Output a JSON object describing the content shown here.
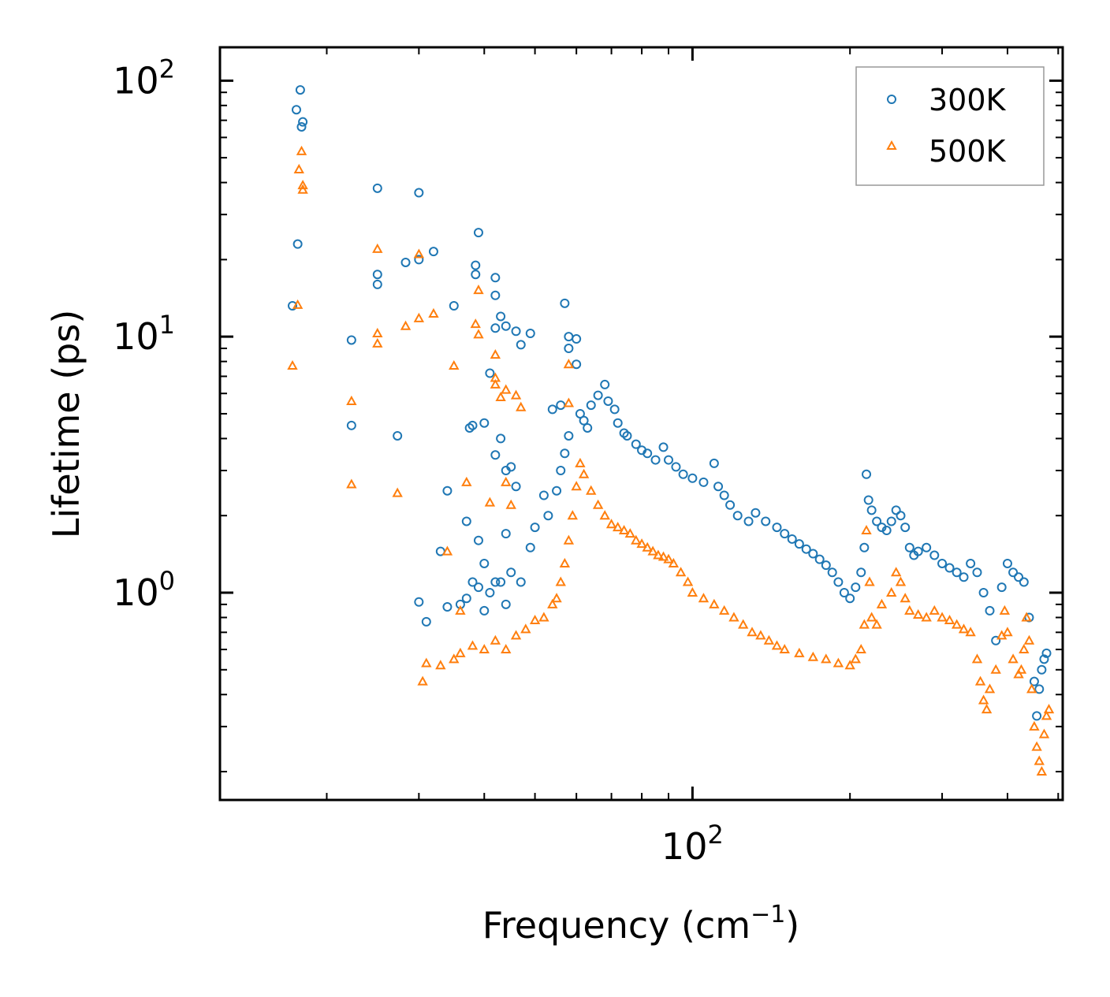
{
  "chart_data": {
    "type": "scatter",
    "xscale": "log",
    "yscale": "log",
    "xlabel": "Frequency (cm",
    "xlabel_sup": "−1",
    "xlabel_end": ")",
    "ylabel": "Lifetime (ps)",
    "xlim": [
      12.5,
      510
    ],
    "ylim": [
      0.155,
      135
    ],
    "x_ticks": [
      {
        "value": 100,
        "base": "10",
        "exp": "2"
      }
    ],
    "y_ticks": [
      {
        "value": 1,
        "base": "10",
        "exp": "0"
      },
      {
        "value": 10,
        "base": "10",
        "exp": "1"
      },
      {
        "value": 100,
        "base": "10",
        "exp": "2"
      }
    ],
    "legend": {
      "position": "top-right",
      "entries": [
        "300K",
        "500K"
      ]
    },
    "series": [
      {
        "name": "300K",
        "marker": "circle",
        "color": "#1f77b4",
        "points": [
          [
            17.2,
            13.2
          ],
          [
            17.5,
            77
          ],
          [
            17.8,
            92
          ],
          [
            17.9,
            66
          ],
          [
            18.0,
            69
          ],
          [
            17.6,
            23
          ],
          [
            22.3,
            9.7
          ],
          [
            22.3,
            4.5
          ],
          [
            25.0,
            38
          ],
          [
            25.0,
            17.5
          ],
          [
            25.0,
            16
          ],
          [
            27.3,
            4.1
          ],
          [
            28.3,
            19.5
          ],
          [
            30.0,
            20
          ],
          [
            30.0,
            36.5
          ],
          [
            32.0,
            21.5
          ],
          [
            35.0,
            13.2
          ],
          [
            38.5,
            19
          ],
          [
            38.5,
            17.5
          ],
          [
            39.0,
            25.5
          ],
          [
            42,
            17
          ],
          [
            42,
            14.5
          ],
          [
            43,
            12
          ],
          [
            44,
            11
          ],
          [
            42,
            10.8
          ],
          [
            46,
            10.5
          ],
          [
            47,
            9.3
          ],
          [
            49,
            10.3
          ],
          [
            41,
            7.2
          ],
          [
            40,
            4.6
          ],
          [
            38,
            4.5
          ],
          [
            37.5,
            4.4
          ],
          [
            43,
            4.0
          ],
          [
            45,
            3.1
          ],
          [
            44,
            3.0
          ],
          [
            42,
            3.45
          ],
          [
            46,
            2.6
          ],
          [
            34,
            2.5
          ],
          [
            37,
            1.9
          ],
          [
            33,
            1.45
          ],
          [
            39,
            1.6
          ],
          [
            40,
            1.3
          ],
          [
            44,
            1.7
          ],
          [
            45,
            1.2
          ],
          [
            42,
            1.1
          ],
          [
            30,
            0.92
          ],
          [
            31,
            0.77
          ],
          [
            34,
            0.88
          ],
          [
            36,
            0.9
          ],
          [
            37,
            0.95
          ],
          [
            39,
            1.05
          ],
          [
            41,
            1.0
          ],
          [
            43,
            1.1
          ],
          [
            38,
            1.1
          ],
          [
            40,
            0.85
          ],
          [
            44,
            0.9
          ],
          [
            47,
            1.1
          ],
          [
            49,
            1.5
          ],
          [
            50,
            1.8
          ],
          [
            52,
            2.4
          ],
          [
            53,
            2.0
          ],
          [
            55,
            2.5
          ],
          [
            56,
            3.0
          ],
          [
            57,
            3.5
          ],
          [
            58,
            4.1
          ],
          [
            54,
            5.2
          ],
          [
            56,
            5.4
          ],
          [
            57,
            13.5
          ],
          [
            58,
            10
          ],
          [
            58,
            9.0
          ],
          [
            60,
            9.8
          ],
          [
            60,
            7.8
          ],
          [
            61,
            5.0
          ],
          [
            62,
            4.7
          ],
          [
            63,
            4.4
          ],
          [
            64,
            5.4
          ],
          [
            66,
            5.9
          ],
          [
            68,
            6.5
          ],
          [
            69,
            5.6
          ],
          [
            71,
            5.2
          ],
          [
            72,
            4.6
          ],
          [
            74,
            4.2
          ],
          [
            75,
            4.1
          ],
          [
            78,
            3.8
          ],
          [
            80,
            3.6
          ],
          [
            82,
            3.5
          ],
          [
            85,
            3.3
          ],
          [
            88,
            3.7
          ],
          [
            90,
            3.3
          ],
          [
            93,
            3.1
          ],
          [
            96,
            2.9
          ],
          [
            100,
            2.8
          ],
          [
            105,
            2.7
          ],
          [
            110,
            3.2
          ],
          [
            112,
            2.6
          ],
          [
            115,
            2.4
          ],
          [
            118,
            2.2
          ],
          [
            122,
            2.0
          ],
          [
            128,
            1.9
          ],
          [
            132,
            2.05
          ],
          [
            138,
            1.9
          ],
          [
            145,
            1.8
          ],
          [
            150,
            1.7
          ],
          [
            155,
            1.62
          ],
          [
            160,
            1.55
          ],
          [
            165,
            1.48
          ],
          [
            170,
            1.42
          ],
          [
            175,
            1.35
          ],
          [
            180,
            1.28
          ],
          [
            185,
            1.2
          ],
          [
            190,
            1.1
          ],
          [
            195,
            1.0
          ],
          [
            200,
            0.95
          ],
          [
            205,
            1.05
          ],
          [
            210,
            1.2
          ],
          [
            213,
            1.5
          ],
          [
            215,
            2.9
          ],
          [
            217,
            2.3
          ],
          [
            220,
            2.1
          ],
          [
            225,
            1.9
          ],
          [
            230,
            1.8
          ],
          [
            235,
            1.75
          ],
          [
            240,
            1.9
          ],
          [
            245,
            2.1
          ],
          [
            250,
            2.0
          ],
          [
            255,
            1.8
          ],
          [
            260,
            1.5
          ],
          [
            265,
            1.4
          ],
          [
            270,
            1.45
          ],
          [
            280,
            1.5
          ],
          [
            290,
            1.4
          ],
          [
            300,
            1.3
          ],
          [
            310,
            1.25
          ],
          [
            320,
            1.2
          ],
          [
            330,
            1.15
          ],
          [
            340,
            1.3
          ],
          [
            350,
            1.2
          ],
          [
            360,
            1.0
          ],
          [
            370,
            0.85
          ],
          [
            380,
            0.65
          ],
          [
            390,
            1.05
          ],
          [
            400,
            1.3
          ],
          [
            410,
            1.2
          ],
          [
            420,
            1.15
          ],
          [
            430,
            1.1
          ],
          [
            440,
            0.8
          ],
          [
            450,
            0.45
          ],
          [
            455,
            0.33
          ],
          [
            460,
            0.42
          ],
          [
            465,
            0.5
          ],
          [
            470,
            0.55
          ],
          [
            475,
            0.58
          ]
        ]
      },
      {
        "name": "500K",
        "marker": "triangle",
        "color": "#ff7f0e",
        "points": [
          [
            17.2,
            7.7
          ],
          [
            17.6,
            13.3
          ],
          [
            17.7,
            45
          ],
          [
            17.9,
            53
          ],
          [
            18.0,
            39
          ],
          [
            18.0,
            37.5
          ],
          [
            22.3,
            5.6
          ],
          [
            22.3,
            2.65
          ],
          [
            25.0,
            22
          ],
          [
            25.0,
            10.3
          ],
          [
            25.0,
            9.4
          ],
          [
            27.3,
            2.45
          ],
          [
            28.3,
            11
          ],
          [
            30.0,
            21
          ],
          [
            30.0,
            11.8
          ],
          [
            32.0,
            12.3
          ],
          [
            34,
            1.45
          ],
          [
            35,
            7.7
          ],
          [
            37,
            2.7
          ],
          [
            38.5,
            11.2
          ],
          [
            39,
            10.2
          ],
          [
            39,
            15.2
          ],
          [
            42,
            8.5
          ],
          [
            42,
            6.9
          ],
          [
            42,
            6.5
          ],
          [
            43,
            5.8
          ],
          [
            44,
            6.2
          ],
          [
            46,
            5.9
          ],
          [
            47,
            5.3
          ],
          [
            44,
            2.7
          ],
          [
            45,
            2.2
          ],
          [
            41,
            2.25
          ],
          [
            36,
            0.85
          ],
          [
            31,
            0.53
          ],
          [
            30.5,
            0.45
          ],
          [
            33,
            0.52
          ],
          [
            35,
            0.55
          ],
          [
            36,
            0.58
          ],
          [
            38,
            0.62
          ],
          [
            40,
            0.6
          ],
          [
            42,
            0.65
          ],
          [
            44,
            0.6
          ],
          [
            46,
            0.68
          ],
          [
            48,
            0.72
          ],
          [
            50,
            0.78
          ],
          [
            52,
            0.8
          ],
          [
            54,
            0.9
          ],
          [
            55,
            0.95
          ],
          [
            56,
            1.1
          ],
          [
            57,
            1.3
          ],
          [
            58,
            1.6
          ],
          [
            59,
            2.0
          ],
          [
            60,
            2.6
          ],
          [
            61,
            3.2
          ],
          [
            58,
            5.5
          ],
          [
            58,
            7.8
          ],
          [
            62,
            2.9
          ],
          [
            64,
            2.5
          ],
          [
            66,
            2.2
          ],
          [
            68,
            2.0
          ],
          [
            70,
            1.85
          ],
          [
            72,
            1.8
          ],
          [
            74,
            1.75
          ],
          [
            76,
            1.7
          ],
          [
            78,
            1.6
          ],
          [
            80,
            1.55
          ],
          [
            82,
            1.5
          ],
          [
            84,
            1.45
          ],
          [
            86,
            1.4
          ],
          [
            88,
            1.38
          ],
          [
            90,
            1.35
          ],
          [
            92,
            1.3
          ],
          [
            95,
            1.2
          ],
          [
            98,
            1.1
          ],
          [
            100,
            1.0
          ],
          [
            105,
            0.95
          ],
          [
            110,
            0.9
          ],
          [
            115,
            0.85
          ],
          [
            120,
            0.8
          ],
          [
            125,
            0.75
          ],
          [
            130,
            0.7
          ],
          [
            135,
            0.68
          ],
          [
            140,
            0.65
          ],
          [
            145,
            0.62
          ],
          [
            150,
            0.6
          ],
          [
            160,
            0.58
          ],
          [
            170,
            0.56
          ],
          [
            180,
            0.55
          ],
          [
            190,
            0.53
          ],
          [
            200,
            0.52
          ],
          [
            205,
            0.55
          ],
          [
            210,
            0.6
          ],
          [
            213,
            0.75
          ],
          [
            215,
            1.75
          ],
          [
            218,
            1.1
          ],
          [
            220,
            0.8
          ],
          [
            225,
            0.75
          ],
          [
            230,
            0.9
          ],
          [
            240,
            1.0
          ],
          [
            245,
            1.2
          ],
          [
            250,
            1.1
          ],
          [
            255,
            0.95
          ],
          [
            260,
            0.85
          ],
          [
            270,
            0.82
          ],
          [
            280,
            0.8
          ],
          [
            290,
            0.85
          ],
          [
            300,
            0.8
          ],
          [
            310,
            0.78
          ],
          [
            320,
            0.75
          ],
          [
            330,
            0.72
          ],
          [
            340,
            0.7
          ],
          [
            350,
            0.55
          ],
          [
            355,
            0.45
          ],
          [
            360,
            0.38
          ],
          [
            365,
            0.35
          ],
          [
            370,
            0.42
          ],
          [
            380,
            0.5
          ],
          [
            390,
            0.68
          ],
          [
            395,
            0.85
          ],
          [
            400,
            0.7
          ],
          [
            410,
            0.55
          ],
          [
            420,
            0.48
          ],
          [
            425,
            0.5
          ],
          [
            430,
            0.6
          ],
          [
            435,
            0.8
          ],
          [
            440,
            0.65
          ],
          [
            445,
            0.42
          ],
          [
            450,
            0.3
          ],
          [
            455,
            0.25
          ],
          [
            460,
            0.22
          ],
          [
            465,
            0.2
          ],
          [
            470,
            0.28
          ],
          [
            475,
            0.33
          ],
          [
            480,
            0.35
          ]
        ]
      }
    ]
  }
}
